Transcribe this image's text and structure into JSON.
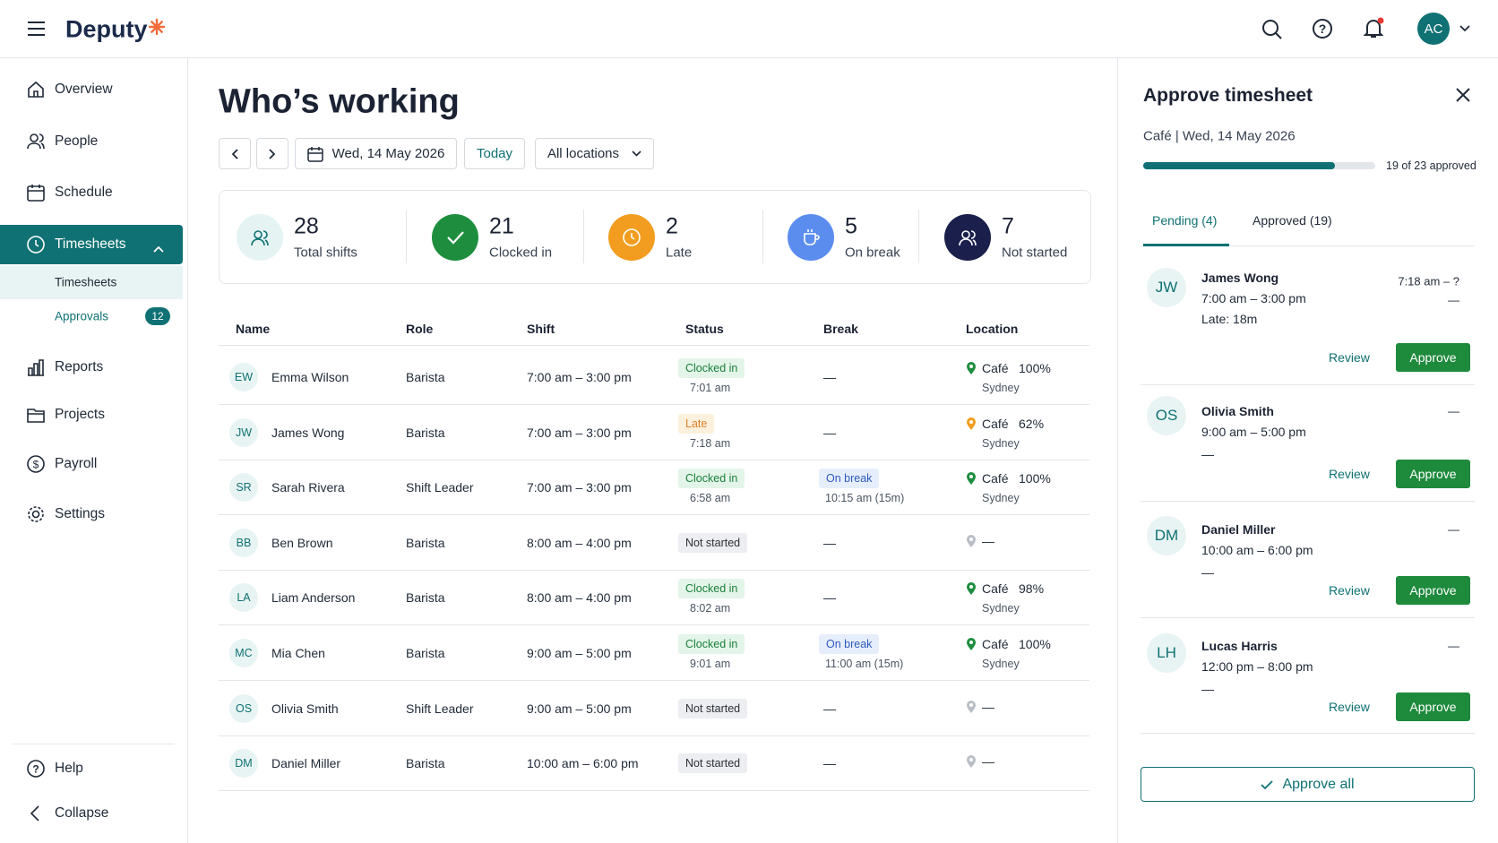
{
  "header": {
    "brand": "Deputy",
    "avatar": "AC"
  },
  "nav": {
    "items": [
      "Overview",
      "People",
      "Schedule",
      "Timesheets"
    ],
    "sub": [
      "Timesheets",
      "Approvals"
    ],
    "approvals_badge": "12",
    "items2": [
      "Reports",
      "Projects",
      "Payroll",
      "Settings"
    ],
    "footer": [
      "Help",
      "Collapse"
    ]
  },
  "page": {
    "title": "Who’s working",
    "date": "Wed, 14 May 2026",
    "today": "Today",
    "location": "All locations"
  },
  "stats": [
    {
      "value": "28",
      "label": "Total shifts",
      "color": "#e6f3f3",
      "icon_color": "#0f7173"
    },
    {
      "value": "21",
      "label": "Clocked in",
      "color": "#1e8e3e",
      "icon_color": "#ffffff"
    },
    {
      "value": "2",
      "label": "Late",
      "color": "#f29d1f",
      "icon_color": "#ffffff"
    },
    {
      "value": "5",
      "label": "On break",
      "color": "#5b8def",
      "icon_color": "#ffffff"
    },
    {
      "value": "7",
      "label": "Not started",
      "color": "#1b1f4b",
      "icon_color": "#ffffff"
    }
  ],
  "table": {
    "columns": [
      "Name",
      "Role",
      "Shift",
      "Status",
      "Break",
      "Location"
    ],
    "rows": [
      {
        "initials": "EW",
        "name": "Emma Wilson",
        "role": "Barista",
        "shift": "7:00 am – 3:00 pm",
        "status": "Clocked in",
        "status_time": "7:01 am",
        "tone": "green",
        "break": "—",
        "location": "Café",
        "percent": "100%",
        "city": "Sydney"
      },
      {
        "initials": "JW",
        "name": "James Wong",
        "role": "Barista",
        "shift": "7:00 am – 3:00 pm",
        "status": "Late",
        "status_time": "7:18 am",
        "tone": "orange",
        "break": "—",
        "location": "Café",
        "percent": "62%",
        "city": "Sydney"
      },
      {
        "initials": "SR",
        "name": "Sarah Rivera",
        "role": "Shift Leader",
        "shift": "7:00 am – 3:00 pm",
        "status": "Clocked in",
        "status_time": "6:58 am",
        "tone": "green",
        "break": "On break",
        "break_time": "10:15 am (15m)",
        "location": "Café",
        "percent": "100%",
        "city": "Sydney"
      },
      {
        "initials": "BB",
        "name": "Ben Brown",
        "role": "Barista",
        "shift": "8:00 am – 4:00 pm",
        "status": "Not started",
        "tone": "grey",
        "break": "—",
        "location": "—"
      },
      {
        "initials": "LA",
        "name": "Liam Anderson",
        "role": "Barista",
        "shift": "8:00 am – 4:00 pm",
        "status": "Clocked in",
        "status_time": "8:02 am",
        "tone": "green",
        "break": "—",
        "location": "Café",
        "percent": "98%",
        "city": "Sydney"
      },
      {
        "initials": "MC",
        "name": "Mia Chen",
        "role": "Barista",
        "shift": "9:00 am – 5:00 pm",
        "status": "Clocked in",
        "status_time": "9:01 am",
        "tone": "green",
        "break": "On break",
        "break_time": "11:00 am (15m)",
        "location": "Café",
        "percent": "100%",
        "city": "Sydney"
      },
      {
        "initials": "OS",
        "name": "Olivia Smith",
        "role": "Shift Leader",
        "shift": "9:00 am – 5:00 pm",
        "status": "Not started",
        "tone": "grey",
        "break": "—",
        "location": "—"
      },
      {
        "initials": "DM",
        "name": "Daniel Miller",
        "role": "Barista",
        "shift": "10:00 am – 6:00 pm",
        "status": "Not started",
        "tone": "grey",
        "break": "—",
        "location": "—"
      }
    ]
  },
  "panel": {
    "title": "Approve timesheet",
    "subtitle": "Café | Wed, 14 May 2026",
    "progress": {
      "approved": 19,
      "total": 23,
      "label": "19 of 23 approved"
    },
    "tabs": [
      "Pending (4)",
      "Approved (19)"
    ],
    "review": "Review",
    "approve": "Approve",
    "approve_all": "Approve all",
    "cards": [
      {
        "initials": "JW",
        "name": "James Wong",
        "shift": "7:00 am – 3:00 pm",
        "note": "Late: 18m",
        "right": "7:18 am – ?",
        "right2": "—"
      },
      {
        "initials": "OS",
        "name": "Olivia Smith",
        "shift": "9:00 am – 5:00 pm",
        "note": "—",
        "right": "—"
      },
      {
        "initials": "DM",
        "name": "Daniel Miller",
        "shift": "10:00 am – 6:00 pm",
        "note": "—",
        "right": "—"
      },
      {
        "initials": "LH",
        "name": "Lucas Harris",
        "shift": "12:00 pm – 8:00 pm",
        "note": "—",
        "right": "—"
      }
    ]
  }
}
